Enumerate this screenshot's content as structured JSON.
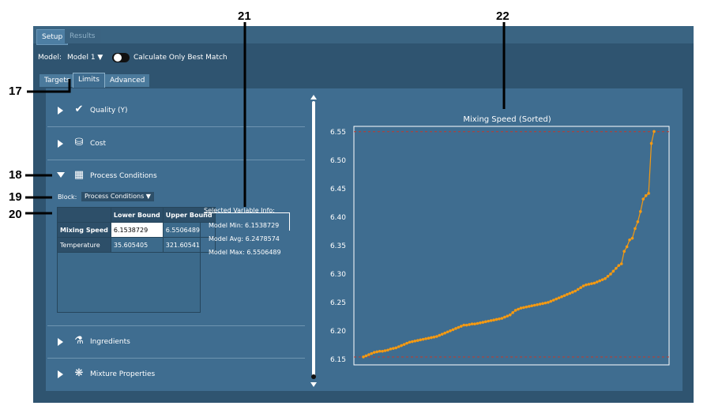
{
  "callouts": {
    "c17": "17",
    "c18": "18",
    "c19": "19",
    "c20": "20",
    "c21": "21",
    "c22": "22"
  },
  "tabs_top": {
    "setup": "Setup",
    "results": "Results"
  },
  "model": {
    "label": "Model:",
    "value": "Model 1",
    "toggle_label": "Calculate Only Best Match"
  },
  "subtabs": {
    "targets": "Targets",
    "limits": "Limits",
    "advanced": "Advanced"
  },
  "sections": {
    "quality": "Quality (Y)",
    "cost": "Cost",
    "process": "Process Conditions",
    "ingredients": "Ingredients",
    "mixture": "Mixture Properties"
  },
  "block": {
    "label": "Block:",
    "value": "Process Conditions"
  },
  "bounds_table": {
    "headers": [
      "",
      "Lower Bound",
      "Upper Bound"
    ],
    "rows": [
      {
        "name": "Mixing Speed",
        "lower": "6.1538729",
        "upper": "6.5506489"
      },
      {
        "name": "Temperature",
        "lower": "35.605405",
        "upper": "321.60541"
      }
    ]
  },
  "selected_info": {
    "title": "Selected Variable Info:",
    "min_label": "Model Min:",
    "min_value": "6.1538729",
    "avg_label": "Model Avg:",
    "avg_value": "6.2478574",
    "max_label": "Model Max:",
    "max_value": "6.5506489"
  },
  "colors": {
    "series": "#f59a12",
    "refline": "#c0392b",
    "bg": "#3f6d90"
  },
  "chart_data": {
    "type": "line",
    "title": "Mixing Speed (Sorted)",
    "ylim": [
      6.14,
      6.56
    ],
    "yticks": [
      "6.15",
      "6.20",
      "6.25",
      "6.30",
      "6.35",
      "6.40",
      "6.45",
      "6.50",
      "6.55"
    ],
    "reference_lines": [
      6.1538729,
      6.5506489
    ],
    "series": [
      {
        "values": [
          6.154,
          6.156,
          6.158,
          6.16,
          6.162,
          6.163,
          6.164,
          6.164,
          6.165,
          6.166,
          6.168,
          6.169,
          6.17,
          6.172,
          6.174,
          6.176,
          6.178,
          6.18,
          6.181,
          6.182,
          6.183,
          6.184,
          6.185,
          6.186,
          6.187,
          6.188,
          6.189,
          6.19,
          6.192,
          6.194,
          6.196,
          6.198,
          6.2,
          6.202,
          6.204,
          6.206,
          6.208,
          6.21,
          6.21,
          6.211,
          6.212,
          6.212,
          6.213,
          6.214,
          6.215,
          6.216,
          6.217,
          6.218,
          6.219,
          6.22,
          6.221,
          6.222,
          6.224,
          6.226,
          6.228,
          6.232,
          6.236,
          6.238,
          6.24,
          6.241,
          6.242,
          6.243,
          6.244,
          6.245,
          6.246,
          6.247,
          6.248,
          6.249,
          6.25,
          6.252,
          6.254,
          6.256,
          6.258,
          6.26,
          6.262,
          6.264,
          6.266,
          6.268,
          6.27,
          6.273,
          6.276,
          6.279,
          6.281,
          6.282,
          6.283,
          6.284,
          6.286,
          6.288,
          6.29,
          6.292,
          6.296,
          6.3,
          6.305,
          6.31,
          6.315,
          6.318,
          6.34,
          6.348,
          6.36,
          6.363,
          6.38,
          6.392,
          6.41,
          6.432,
          6.438,
          6.442,
          6.53,
          6.551
        ]
      }
    ]
  }
}
